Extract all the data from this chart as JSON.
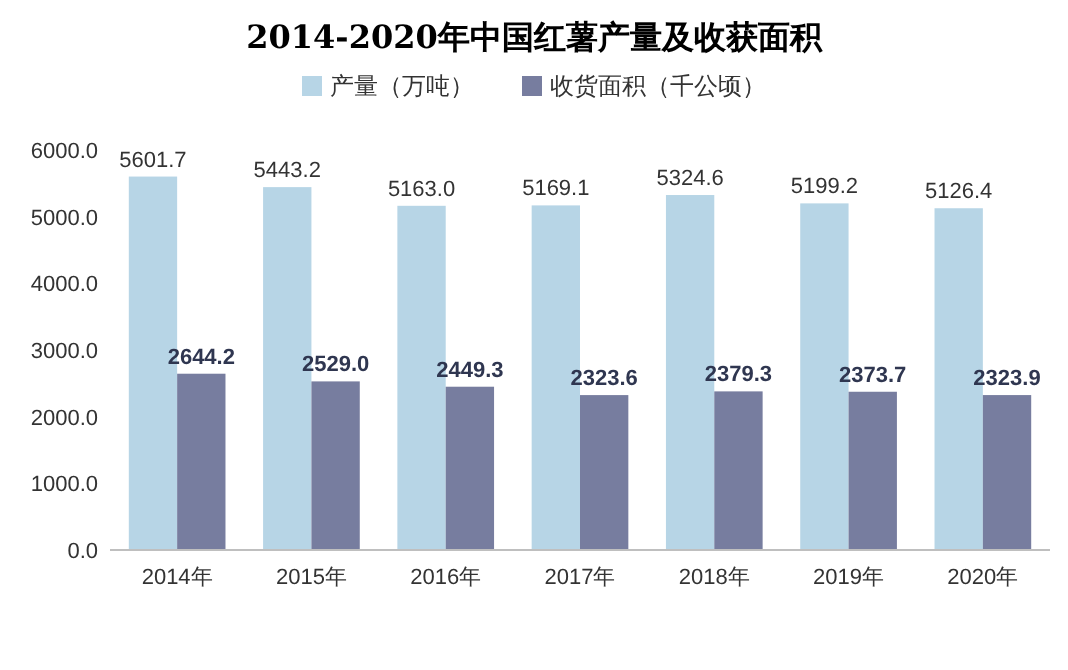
{
  "chart_data": {
    "type": "bar",
    "title": "2014-2020年中国红薯产量及收获面积",
    "categories": [
      "2014年",
      "2015年",
      "2016年",
      "2017年",
      "2018年",
      "2019年",
      "2020年"
    ],
    "series": [
      {
        "name": "产量（万吨）",
        "color": "#b7d5e6",
        "values": [
          5601.7,
          5443.2,
          5163.0,
          5169.1,
          5324.6,
          5199.2,
          5126.4
        ],
        "value_labels": [
          "5601.7",
          "5443.2",
          "5163.0",
          "5169.1",
          "5324.6",
          "5199.2",
          "5126.4"
        ]
      },
      {
        "name": "收货面积（千公顷）",
        "color": "#777d9f",
        "values": [
          2644.2,
          2529.0,
          2449.3,
          2323.6,
          2379.3,
          2373.7,
          2323.9
        ],
        "value_labels": [
          "2644.2",
          "2529.0",
          "2449.3",
          "2323.6",
          "2379.3",
          "2373.7",
          "2323.9"
        ]
      }
    ],
    "ylim": [
      0,
      6000
    ],
    "yticks": [
      {
        "value": 0,
        "label": "0.0"
      },
      {
        "value": 1000,
        "label": "1000.0"
      },
      {
        "value": 2000,
        "label": "2000.0"
      },
      {
        "value": 3000,
        "label": "3000.0"
      },
      {
        "value": 4000,
        "label": "4000.0"
      },
      {
        "value": 5000,
        "label": "5000.0"
      },
      {
        "value": 6000,
        "label": "6000.0"
      }
    ],
    "legend": "top",
    "grid": false
  }
}
